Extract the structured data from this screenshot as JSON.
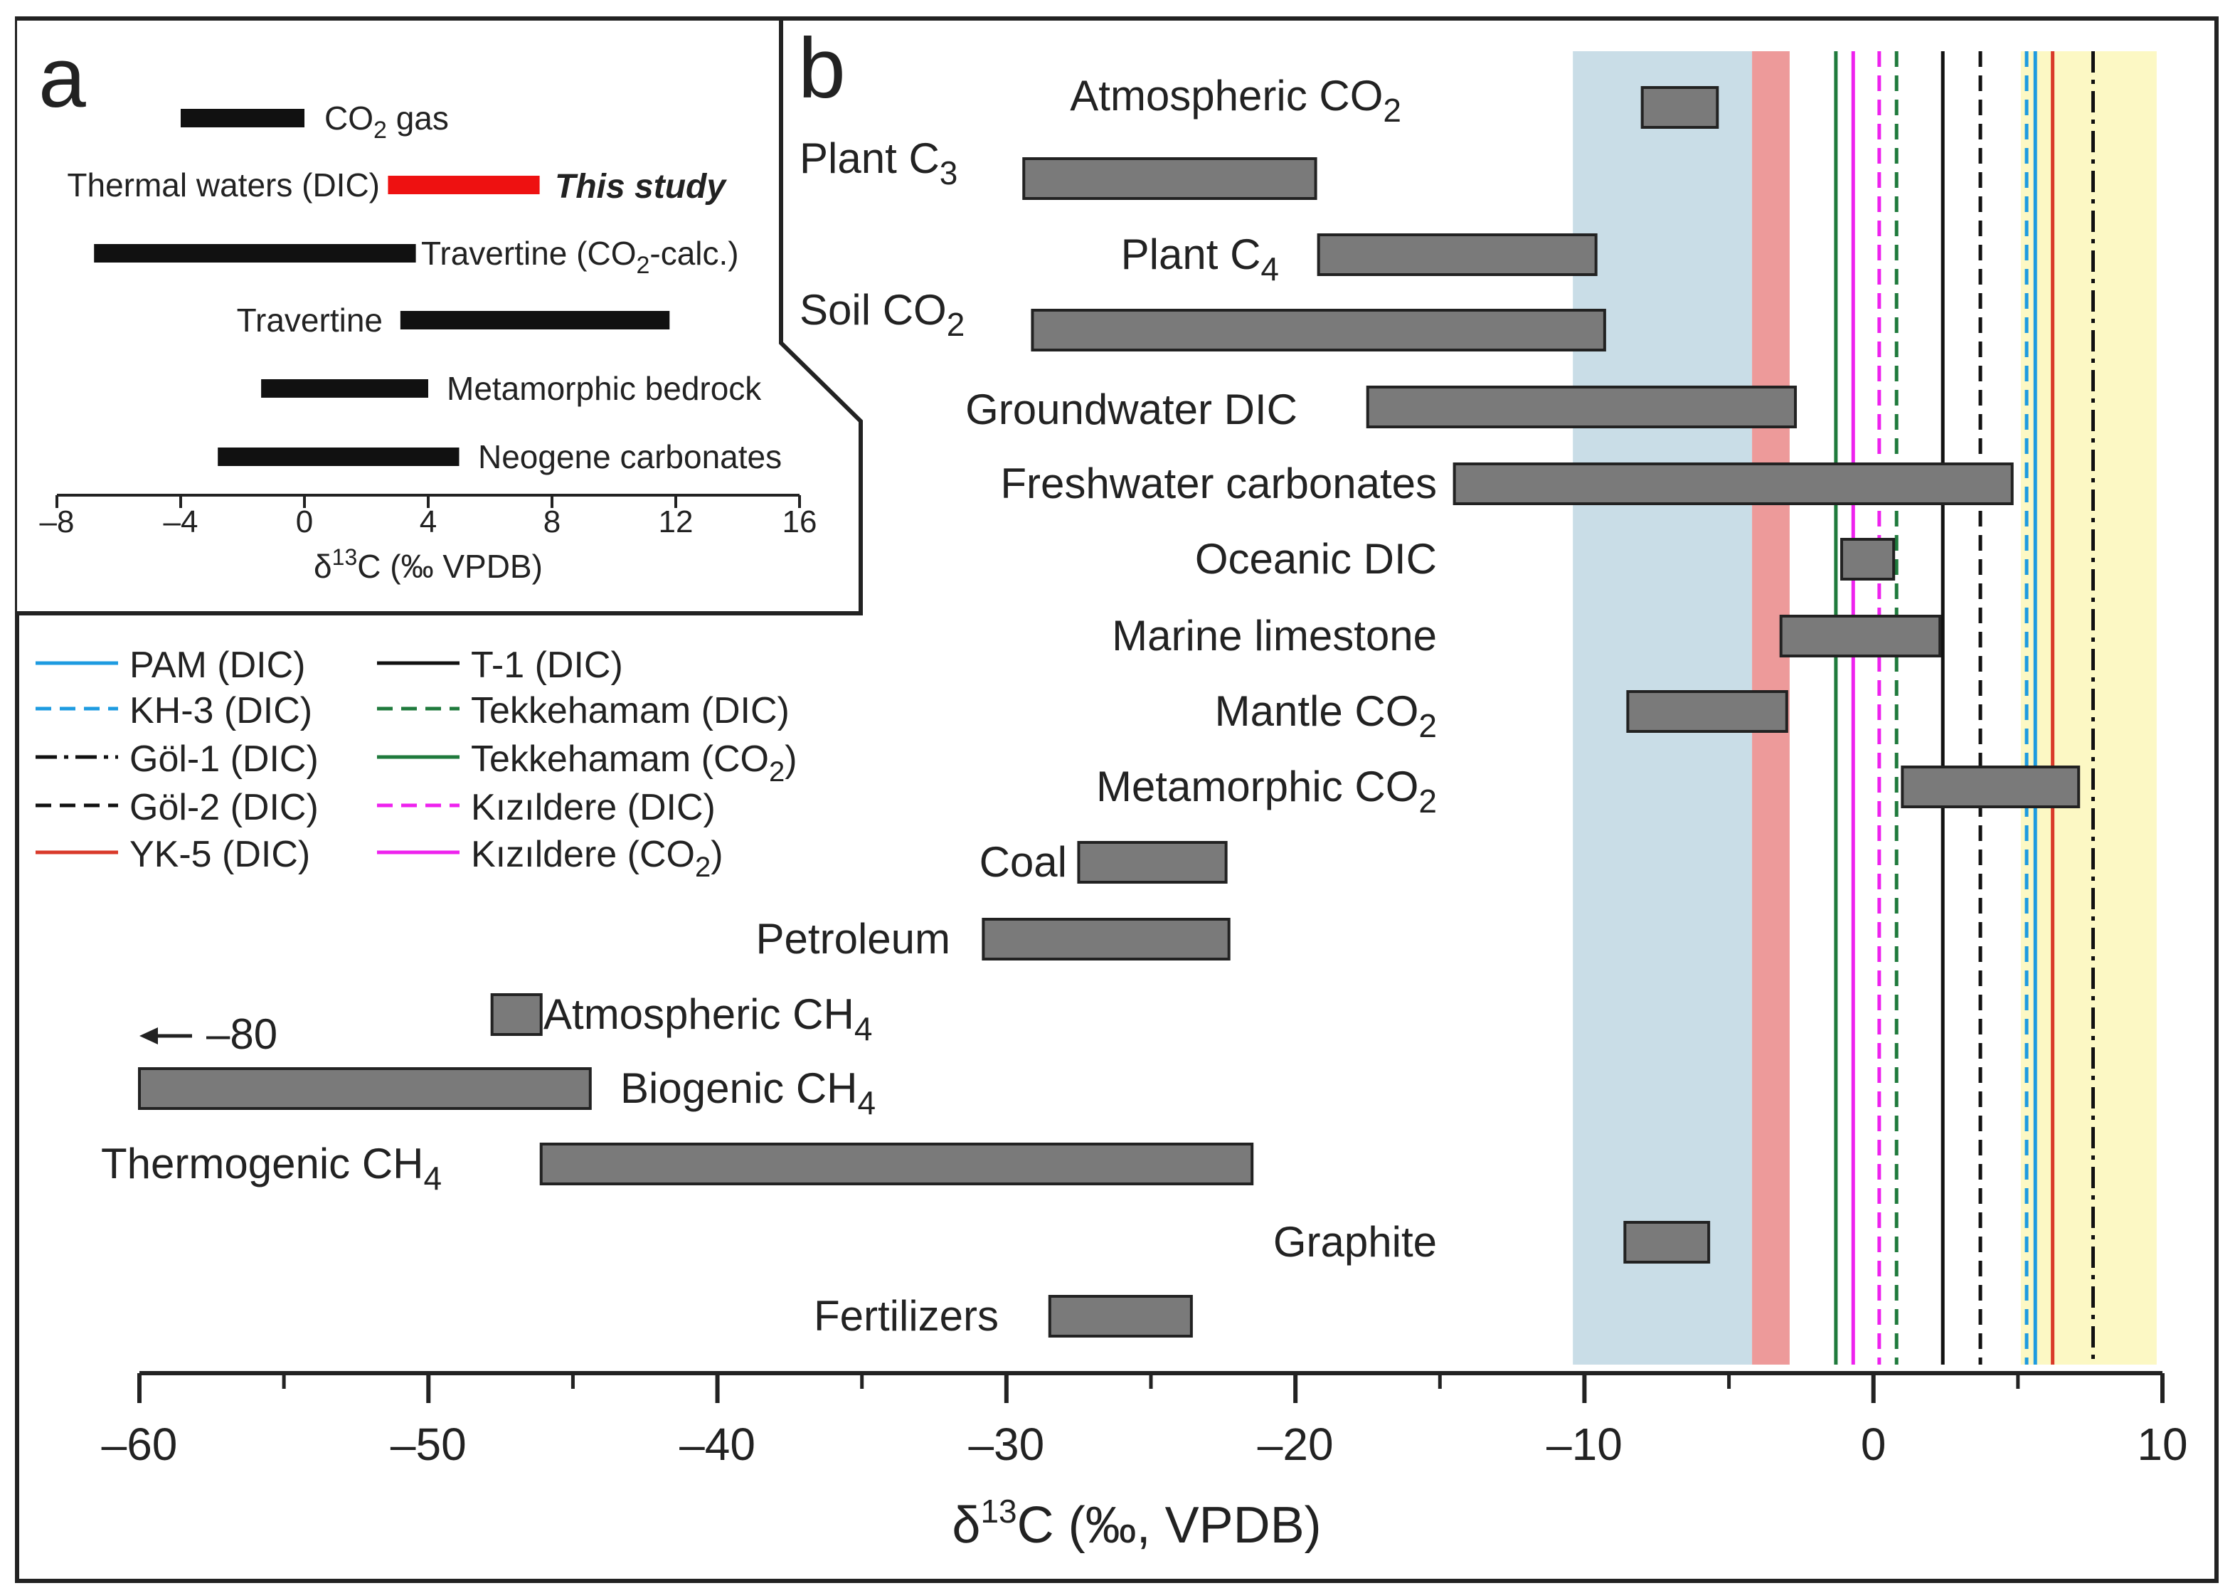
{
  "chart_data": [
    {
      "panel": "a",
      "type": "bar",
      "panel_label": "a",
      "xlabel": "δ13C (‰ VPDB)",
      "xlim": [
        -8,
        16
      ],
      "xticks": [
        -8,
        -4,
        0,
        4,
        8,
        12,
        16
      ],
      "xtick_labels": [
        "–8",
        "–4",
        "0",
        "4",
        "8",
        "12",
        "16"
      ],
      "ranges": [
        {
          "label": "CO2 gas",
          "min": -4,
          "max": 0,
          "color": "#111111"
        },
        {
          "label": "Thermal waters (DIC)",
          "min": 2.7,
          "max": 7.6,
          "color": "#ee1111",
          "note": "This study"
        },
        {
          "label": "Travertine (CO2-calc.)",
          "min": -6.8,
          "max": 3.6,
          "color": "#111111"
        },
        {
          "label": "Travertine",
          "min": 3.1,
          "max": 11.8,
          "color": "#111111"
        },
        {
          "label": "Metamorphic bedrock",
          "min": -1.4,
          "max": 4.0,
          "color": "#111111"
        },
        {
          "label": "Neogene carbonates",
          "min": -2.8,
          "max": 5.0,
          "color": "#111111"
        }
      ]
    },
    {
      "panel": "b",
      "type": "bar",
      "panel_label": "b",
      "xlabel": "δ13C (‰, VPDB)",
      "xlim": [
        -60,
        10
      ],
      "xticks": [
        -60,
        -50,
        -40,
        -30,
        -20,
        -10,
        0,
        10
      ],
      "xtick_labels": [
        "–60",
        "–50",
        "–40",
        "–30",
        "–20",
        "–10",
        "0",
        "10"
      ],
      "ranges": [
        {
          "label": "Atmospheric CO2",
          "min": -8,
          "max": -5.4
        },
        {
          "label": "Plant C3",
          "min": -29.4,
          "max": -19.3
        },
        {
          "label": "Plant C4",
          "min": -19.2,
          "max": -9.6
        },
        {
          "label": "Soil CO2",
          "min": -29.1,
          "max": -9.3
        },
        {
          "label": "Groundwater DIC",
          "min": -17.5,
          "max": -2.7
        },
        {
          "label": "Freshwater carbonates",
          "min": -14.5,
          "max": 4.8
        },
        {
          "label": "Oceanic DIC",
          "min": -1.1,
          "max": 0.7
        },
        {
          "label": "Marine limestone",
          "min": -3.2,
          "max": 2.3
        },
        {
          "label": "Mantle CO2",
          "min": -8.5,
          "max": -3
        },
        {
          "label": "Metamorphic CO2",
          "min": 1,
          "max": 7.1
        },
        {
          "label": "Coal",
          "min": -27.5,
          "max": -22.4
        },
        {
          "label": "Petroleum",
          "min": -30.8,
          "max": -22.3
        },
        {
          "label": "Atmospheric CH4",
          "min": -47.8,
          "max": -46.1
        },
        {
          "label": "Biogenic CH4",
          "min": -60,
          "max": -44.4,
          "note": "← –80"
        },
        {
          "label": "Thermogenic CH4",
          "min": -46.1,
          "max": -21.5
        },
        {
          "label": "Graphite",
          "min": -8.6,
          "max": -5.7
        },
        {
          "label": "Fertilizers",
          "min": -28.5,
          "max": -23.6
        }
      ],
      "shaded_bands": [
        {
          "min": -10.4,
          "max": -4.2,
          "color": "#c9dde7"
        },
        {
          "min": -4.2,
          "max": -2.9,
          "color": "#ed9a9a"
        },
        {
          "min": 5.1,
          "max": 9.8,
          "color": "#fcf8c4"
        }
      ],
      "reference_lines": [
        {
          "name": "PAM (DIC)",
          "value": 5.6,
          "color": "#1e9be0",
          "style": "solid"
        },
        {
          "name": "KH-3 (DIC)",
          "value": 5.3,
          "color": "#1e9be0",
          "style": "dashed"
        },
        {
          "name": "Göl-1 (DIC)",
          "value": 7.6,
          "color": "#111111",
          "style": "dashdot"
        },
        {
          "name": "Göl-2 (DIC)",
          "value": 3.7,
          "color": "#111111",
          "style": "dashed"
        },
        {
          "name": "YK-5 (DIC)",
          "value": 6.2,
          "color": "#d93a2a",
          "style": "solid"
        },
        {
          "name": "T-1 (DIC)",
          "value": 2.4,
          "color": "#111111",
          "style": "solid"
        },
        {
          "name": "Tekkehamam (DIC)",
          "value": 0.8,
          "color": "#1f7a3c",
          "style": "dashed"
        },
        {
          "name": "Tekkehamam (CO2)",
          "value": -1.3,
          "color": "#1f7a3c",
          "style": "solid"
        },
        {
          "name": "Kızıldere (DIC)",
          "value": 0.2,
          "color": "#ee22ee",
          "style": "dashed"
        },
        {
          "name": "Kızıldere (CO2)",
          "value": -0.7,
          "color": "#ee22ee",
          "style": "solid"
        }
      ]
    }
  ]
}
